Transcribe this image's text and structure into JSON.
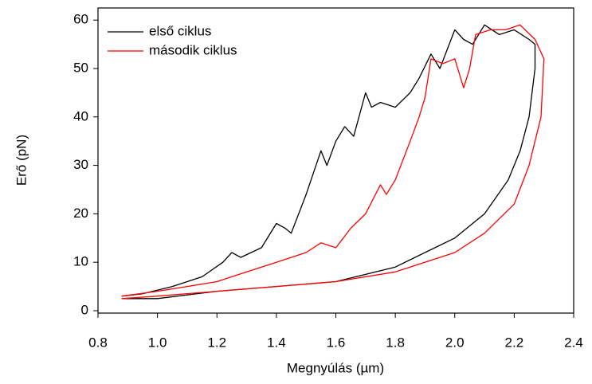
{
  "chart_data": {
    "type": "line",
    "x_label": "Megnyúlás (µm)",
    "y_label": "Erő (pN)",
    "xlim": [
      0.8,
      2.4
    ],
    "ylim": [
      -0.5,
      62.5
    ],
    "xticks": [
      0.8,
      {
        "value": 1,
        "label": "1.0"
      },
      1.2,
      1.4,
      1.6,
      1.8,
      {
        "value": 2,
        "label": "2.0"
      },
      2.2,
      2.4
    ],
    "yticks": [
      0,
      10,
      20,
      30,
      40,
      50,
      60
    ],
    "legend": "top-left",
    "series": [
      {
        "name": "első ciklus",
        "color": "#000000",
        "x": [
          0.88,
          0.95,
          1.05,
          1.15,
          1.22,
          1.25,
          1.28,
          1.35,
          1.4,
          1.43,
          1.45,
          1.5,
          1.55,
          1.57,
          1.6,
          1.63,
          1.66,
          1.7,
          1.72,
          1.75,
          1.8,
          1.85,
          1.88,
          1.92,
          1.95,
          2.0,
          2.03,
          2.06,
          2.1,
          2.15,
          2.2,
          2.25,
          2.27,
          2.27,
          2.25,
          2.22,
          2.18,
          2.1,
          2.0,
          1.9,
          1.8,
          1.6,
          1.4,
          1.2,
          1.0,
          0.88
        ],
        "values": [
          3,
          3.5,
          5,
          7,
          10,
          12,
          11,
          13,
          18,
          17,
          16,
          24,
          33,
          30,
          35,
          38,
          36,
          45,
          42,
          43,
          42,
          45,
          48,
          53,
          50,
          58,
          56,
          55,
          59,
          57,
          58,
          56,
          55,
          50,
          40,
          33,
          27,
          20,
          15,
          12,
          9,
          6,
          5,
          4,
          2.5,
          2.5
        ]
      },
      {
        "name": "második ciklus",
        "color": "#ff0000",
        "x": [
          0.88,
          1.0,
          1.1,
          1.2,
          1.3,
          1.4,
          1.5,
          1.55,
          1.6,
          1.65,
          1.7,
          1.75,
          1.77,
          1.8,
          1.85,
          1.88,
          1.9,
          1.92,
          1.96,
          2.0,
          2.03,
          2.05,
          2.07,
          2.12,
          2.17,
          2.22,
          2.27,
          2.3,
          2.29,
          2.25,
          2.2,
          2.1,
          2.0,
          1.8,
          1.6,
          1.4,
          1.2,
          1.0,
          0.88
        ],
        "values": [
          3,
          4,
          5,
          6,
          8,
          10,
          12,
          14,
          13,
          17,
          20,
          26,
          24,
          27,
          35,
          40,
          44,
          52,
          51,
          52,
          46,
          50,
          57,
          58,
          58,
          59,
          56,
          52,
          40,
          30,
          22,
          16,
          12,
          8,
          6,
          5,
          4,
          3,
          2.5
        ]
      }
    ]
  }
}
